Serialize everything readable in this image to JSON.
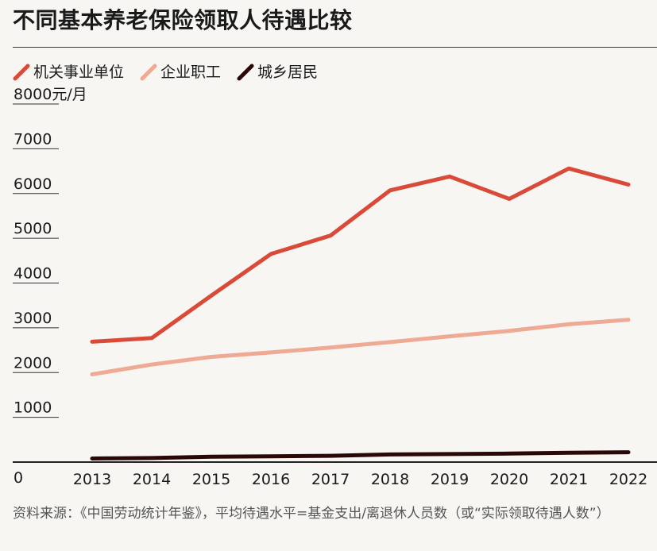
{
  "header": {
    "title": "不同基本养老保险领取人待遇比较"
  },
  "chart_data": {
    "type": "line",
    "title": "不同基本养老保险领取人待遇比较",
    "xlabel": "",
    "ylabel": "元/月",
    "ylim": [
      0,
      8000
    ],
    "y_ticks": [
      "0",
      "1000",
      "2000",
      "3000",
      "4000",
      "5000",
      "6000",
      "7000",
      "8000元/月"
    ],
    "x": [
      "2013",
      "2014",
      "2015",
      "2016",
      "2017",
      "2018",
      "2019",
      "2020",
      "2021",
      "2022"
    ],
    "series": [
      {
        "name": "机关事业单位",
        "color": "#d94a38",
        "values": [
          2690,
          2770,
          3720,
          4650,
          5060,
          6070,
          6380,
          5880,
          6560,
          6200
        ]
      },
      {
        "name": "企业职工",
        "color": "#eeaa95",
        "values": [
          1960,
          2180,
          2350,
          2450,
          2560,
          2680,
          2810,
          2930,
          3080,
          3180
        ]
      },
      {
        "name": "城乡居民",
        "color": "#2a0808",
        "values": [
          80,
          90,
          120,
          130,
          140,
          170,
          180,
          190,
          210,
          220
        ]
      }
    ],
    "grid": false,
    "legend_position": "top-left"
  },
  "source": {
    "text": "资料来源：《中国劳动统计年鉴》，平均待遇水平=基金支出/离退休人员数（或“实际领取待遇人数”）"
  }
}
